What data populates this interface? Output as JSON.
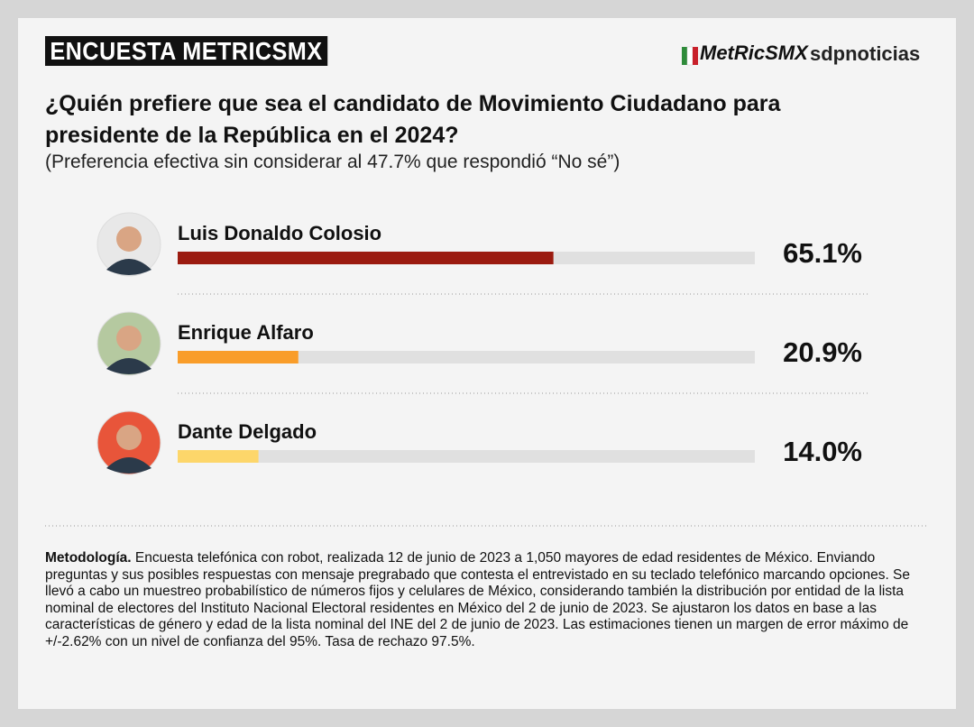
{
  "header": {
    "badge": "ENCUESTA METRICSMX",
    "logo": "MetRicSMX",
    "partner": "sdpnoticias"
  },
  "chart_data": {
    "type": "bar",
    "title": "¿Quién prefiere que sea el candidato de Movimiento Ciudadano para presidente de la República en el 2024?",
    "subtitle": "(Preferencia efectiva sin considerar al 47.7% que respondió “No sé”)",
    "categories": [
      "Luis Donaldo Colosio",
      "Enrique Alfaro",
      "Dante Delgado"
    ],
    "values": [
      65.1,
      20.9,
      14.0
    ],
    "value_labels": [
      "65.1%",
      "20.9%",
      "14.0%"
    ],
    "colors": [
      "#9b1b10",
      "#f99d2a",
      "#fdd66a"
    ],
    "xlim": [
      0,
      100
    ]
  },
  "methodology": {
    "label": "Metodología.",
    "text": "Encuesta telefónica con robot, realizada 12 de junio de 2023 a 1,050 mayores de edad residentes de México. Enviando preguntas y sus posibles respuestas con mensaje pregrabado que contesta el entrevistado en su teclado telefónico marcando opciones. Se llevó a cabo un muestreo probabilístico de números fijos y celulares de México, considerando también la distribución por entidad de la lista nominal de electores del Instituto Nacional Electoral residentes en México del 2 de junio de 2023. Se ajustaron los datos en base a las características de género y edad de la lista nominal del INE del 2 de junio de 2023. Las estimaciones tienen un margen de error máximo de +/-2.62% con un nivel de confianza del 95%. Tasa de rechazo 97.5%."
  }
}
